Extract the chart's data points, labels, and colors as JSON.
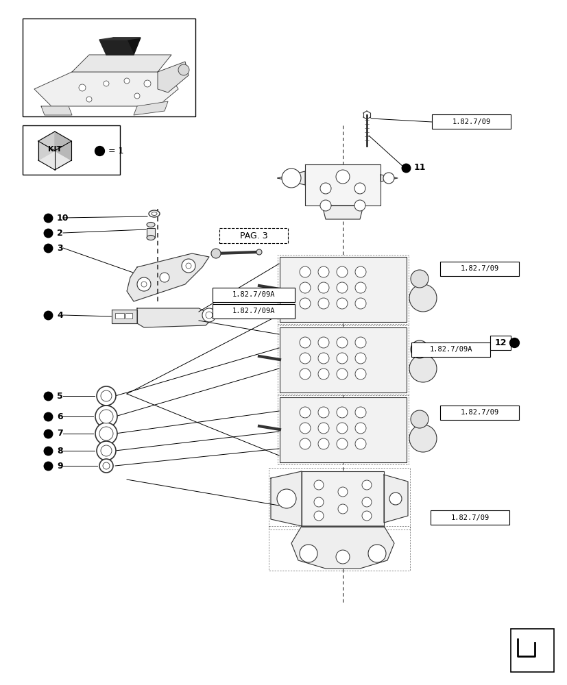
{
  "bg_color": "#ffffff",
  "line_color": "#333333",
  "black": "#000000",
  "gray": "#666666",
  "light_gray": "#dddddd",
  "page_ref_labels": [
    "1.82.7/09",
    "1.82.7/09",
    "1.82.7/09A",
    "1.82.7/09A",
    "1.82.7/09",
    "1.82.7/09"
  ],
  "item_numbers": [
    "10",
    "2",
    "3",
    "4",
    "5",
    "6",
    "7",
    "8",
    "9",
    "11",
    "12"
  ],
  "pag_label": "PAG. 3",
  "kit_label": "KIT"
}
